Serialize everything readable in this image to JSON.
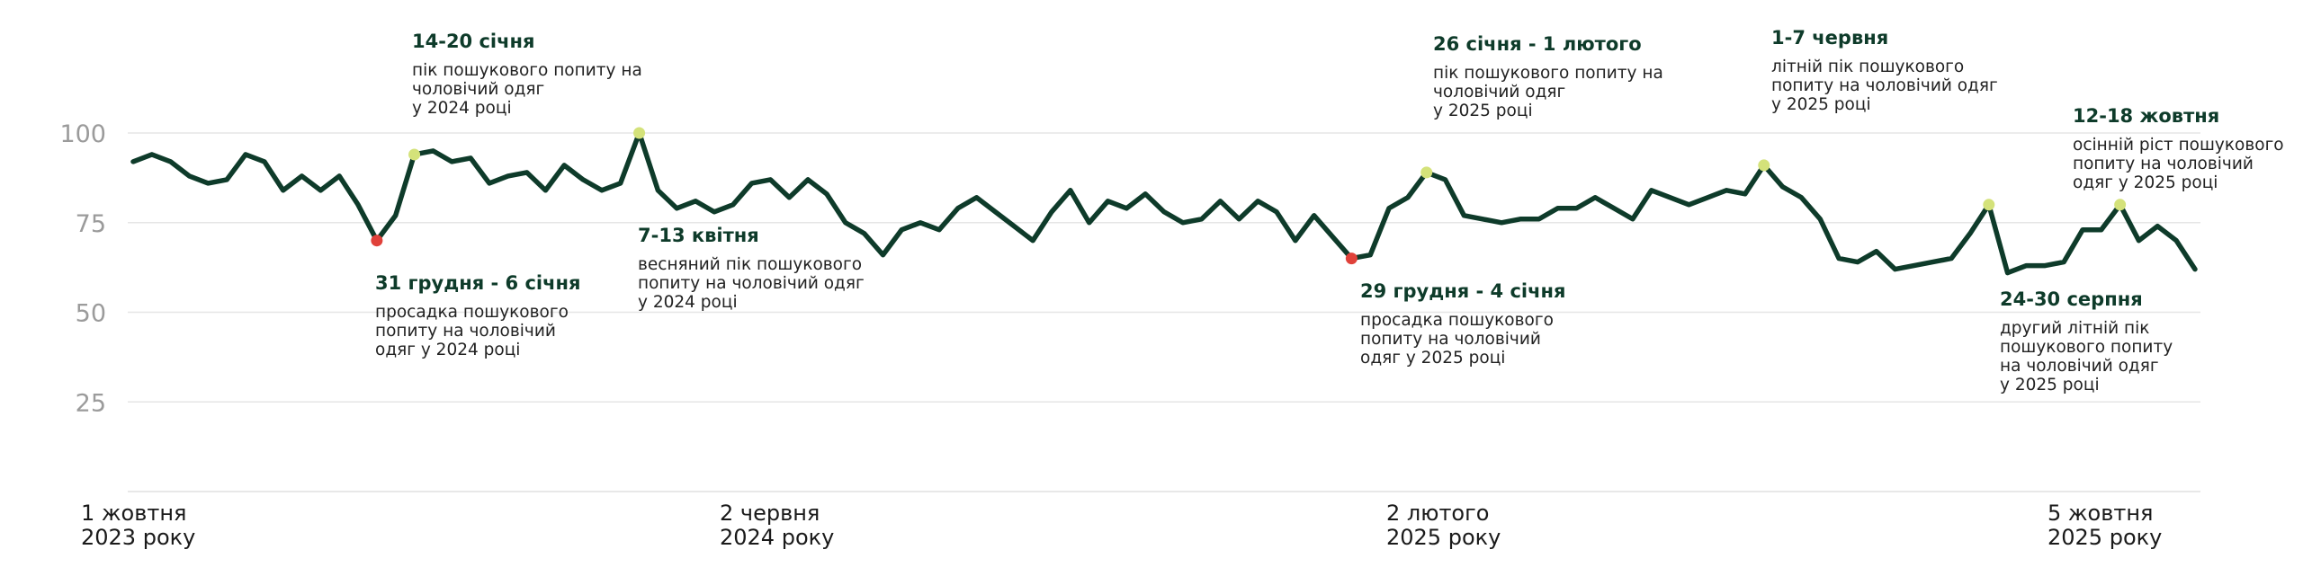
{
  "chart_data": {
    "type": "line",
    "title": "",
    "xlabel": "",
    "ylabel": "",
    "ylim": [
      0,
      100
    ],
    "grid": true,
    "colors": {
      "line": "#0e3b2a",
      "peak": "#d4e27a",
      "dip": "#e0413a",
      "grid": "#e6e6e6",
      "tick": "#9b9b9b"
    },
    "y_ticks": [
      "100",
      "75",
      "50",
      "25"
    ],
    "y_tick_values": [
      100,
      75,
      50,
      25
    ],
    "x_tick_labels": [
      {
        "line1": "1 жовтня",
        "line2": "2023 року",
        "week": 0
      },
      {
        "line1": "2 червня",
        "line2": "2024 року",
        "week": 35
      },
      {
        "line1": "2 лютого",
        "line2": "2025 року",
        "week": 71
      },
      {
        "line1": "5 жовтня",
        "line2": "2025 року",
        "week": 106
      }
    ],
    "series": [
      {
        "values": [
          92,
          94,
          92,
          88,
          86,
          87,
          94,
          92,
          84,
          88,
          84,
          88,
          80,
          70,
          77,
          94,
          95,
          92,
          93,
          86,
          88,
          89,
          84,
          91,
          87,
          84,
          86,
          100,
          84,
          79,
          81,
          78,
          80,
          86,
          87,
          82,
          87,
          83,
          75,
          72,
          66,
          73,
          75,
          73,
          79,
          82,
          78,
          74,
          70,
          78,
          84,
          75,
          81,
          79,
          83,
          78,
          75,
          76,
          81,
          76,
          81,
          78,
          70,
          77,
          71,
          65,
          66,
          79,
          82,
          89,
          87,
          77,
          76,
          75,
          76,
          76,
          79,
          79,
          82,
          79,
          76,
          84,
          82,
          80,
          82,
          84,
          83,
          91,
          85,
          82,
          76,
          65,
          64,
          67,
          62,
          63,
          64,
          65,
          72,
          80,
          61,
          63,
          63,
          64,
          73,
          73,
          80,
          70,
          74,
          70,
          62
        ]
      }
    ],
    "annotations": [
      {
        "type": "peak",
        "week": 15,
        "value": 94,
        "title": "14-20 січня",
        "text": [
          "пік пошукового попиту на",
          "чоловічий одяг",
          "у 2024 році"
        ]
      },
      {
        "type": "dip",
        "week": 13,
        "value": 70,
        "title": "31 грудня - 6 січня",
        "text": [
          "просадка пошукового",
          "попиту на чоловічий",
          "одяг у 2024 році"
        ]
      },
      {
        "type": "peak",
        "week": 27,
        "value": 100,
        "title": "7-13 квітня",
        "text": [
          "весняний пік пошукового",
          "попиту на чоловічий одяг",
          "у 2024 році"
        ]
      },
      {
        "type": "peak",
        "week": 69,
        "value": 89,
        "title": "26 січня - 1 лютого",
        "text": [
          "пік пошукового попиту на",
          "чоловічий одяг",
          "у 2025 році"
        ]
      },
      {
        "type": "dip",
        "week": 65,
        "value": 65,
        "title": "29 грудня - 4 січня",
        "text": [
          "просадка пошукового",
          "попиту на чоловічий",
          "одяг у 2025 році"
        ]
      },
      {
        "type": "peak",
        "week": 87,
        "value": 91,
        "title": "1-7 червня",
        "text": [
          "літній пік пошукового",
          "попиту на чоловічий одяг",
          "у 2025 році"
        ]
      },
      {
        "type": "peak",
        "week": 99,
        "value": 80,
        "title": "24-30 серпня",
        "text": [
          "другий літній пік",
          "пошукового попиту",
          "на чоловічий одяг",
          "у 2025 році"
        ]
      },
      {
        "type": "peak",
        "week": 106,
        "value": 80,
        "title": "12-18 жовтня",
        "text": [
          "осінній ріст пошукового",
          "попиту на чоловічий",
          "одяг у 2025 році"
        ]
      }
    ]
  }
}
